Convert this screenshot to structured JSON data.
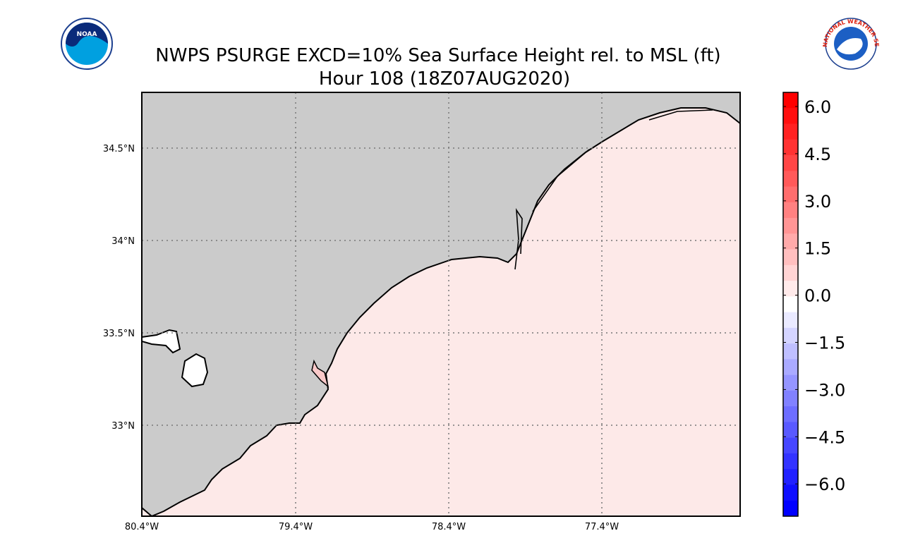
{
  "header": {
    "title": "NWPS PSURGE EXCD=10% Sea Surface Height rel. to MSL (ft)",
    "subtitle": "Hour 108 (18Z07AUG2020)"
  },
  "logos": {
    "left": "NOAA",
    "right": "NATIONAL WEATHER SERVICE"
  },
  "map": {
    "lon_labels": [
      "80.4°W",
      "79.4°W",
      "78.4°W",
      "77.4°W"
    ],
    "lat_labels": [
      "34.5°N",
      "34°N",
      "33.5°N",
      "33°N"
    ]
  },
  "colorbar": {
    "labels": [
      "6.0",
      "4.5",
      "3.0",
      "1.5",
      "0.0",
      "−1.5",
      "−3.0",
      "−4.5",
      "−6.0"
    ]
  }
}
